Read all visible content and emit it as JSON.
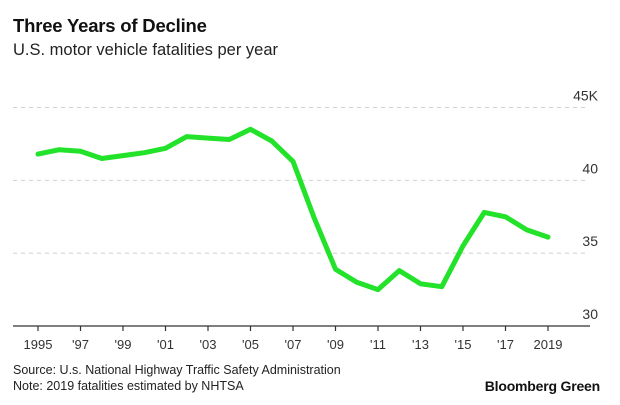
{
  "header": {
    "title": "Three Years of Decline",
    "subtitle": "U.S. motor vehicle fatalities per year"
  },
  "footer": {
    "source": "Source: U.s. National Highway Traffic Safety Administration",
    "note": "Note: 2019 fatalities estimated by NHTSA",
    "brand": "Bloomberg Green"
  },
  "colors": {
    "line": "#22e22a",
    "grid": "#cfcfcf",
    "axis": "#333333"
  },
  "chart_data": {
    "type": "line",
    "title": "Three Years of Decline",
    "subtitle": "U.S. motor vehicle fatalities per year",
    "xlabel": "",
    "ylabel": "",
    "x": [
      1995,
      1996,
      1997,
      1998,
      1999,
      2000,
      2001,
      2002,
      2003,
      2004,
      2005,
      2006,
      2007,
      2008,
      2009,
      2010,
      2011,
      2012,
      2013,
      2014,
      2015,
      2016,
      2017,
      2018,
      2019
    ],
    "series": [
      {
        "name": "U.S. motor vehicle fatalities (thousands)",
        "values": [
          41.8,
          42.1,
          42.0,
          41.5,
          41.7,
          41.9,
          42.2,
          43.0,
          42.9,
          42.8,
          43.5,
          42.7,
          41.3,
          37.4,
          33.9,
          33.0,
          32.5,
          33.8,
          32.9,
          32.7,
          35.5,
          37.8,
          37.5,
          36.6,
          36.1
        ]
      }
    ],
    "ylim": [
      30,
      45
    ],
    "xlim": [
      1995,
      2019
    ],
    "y_ticks": [
      {
        "value": 45,
        "label": "45K"
      },
      {
        "value": 40,
        "label": "40"
      },
      {
        "value": 35,
        "label": "35"
      },
      {
        "value": 30,
        "label": "30"
      }
    ],
    "x_ticks": [
      {
        "value": 1995,
        "label": "1995"
      },
      {
        "value": 1997,
        "label": "'97"
      },
      {
        "value": 1999,
        "label": "'99"
      },
      {
        "value": 2001,
        "label": "'01"
      },
      {
        "value": 2003,
        "label": "'03"
      },
      {
        "value": 2005,
        "label": "'05"
      },
      {
        "value": 2007,
        "label": "'07"
      },
      {
        "value": 2009,
        "label": "'09"
      },
      {
        "value": 2011,
        "label": "'11"
      },
      {
        "value": 2013,
        "label": "'13"
      },
      {
        "value": 2015,
        "label": "'15"
      },
      {
        "value": 2017,
        "label": "'17"
      },
      {
        "value": 2019,
        "label": "2019"
      }
    ],
    "grid": true,
    "grid_style": "dashed",
    "y_axis_position": "right",
    "legend": "none"
  }
}
